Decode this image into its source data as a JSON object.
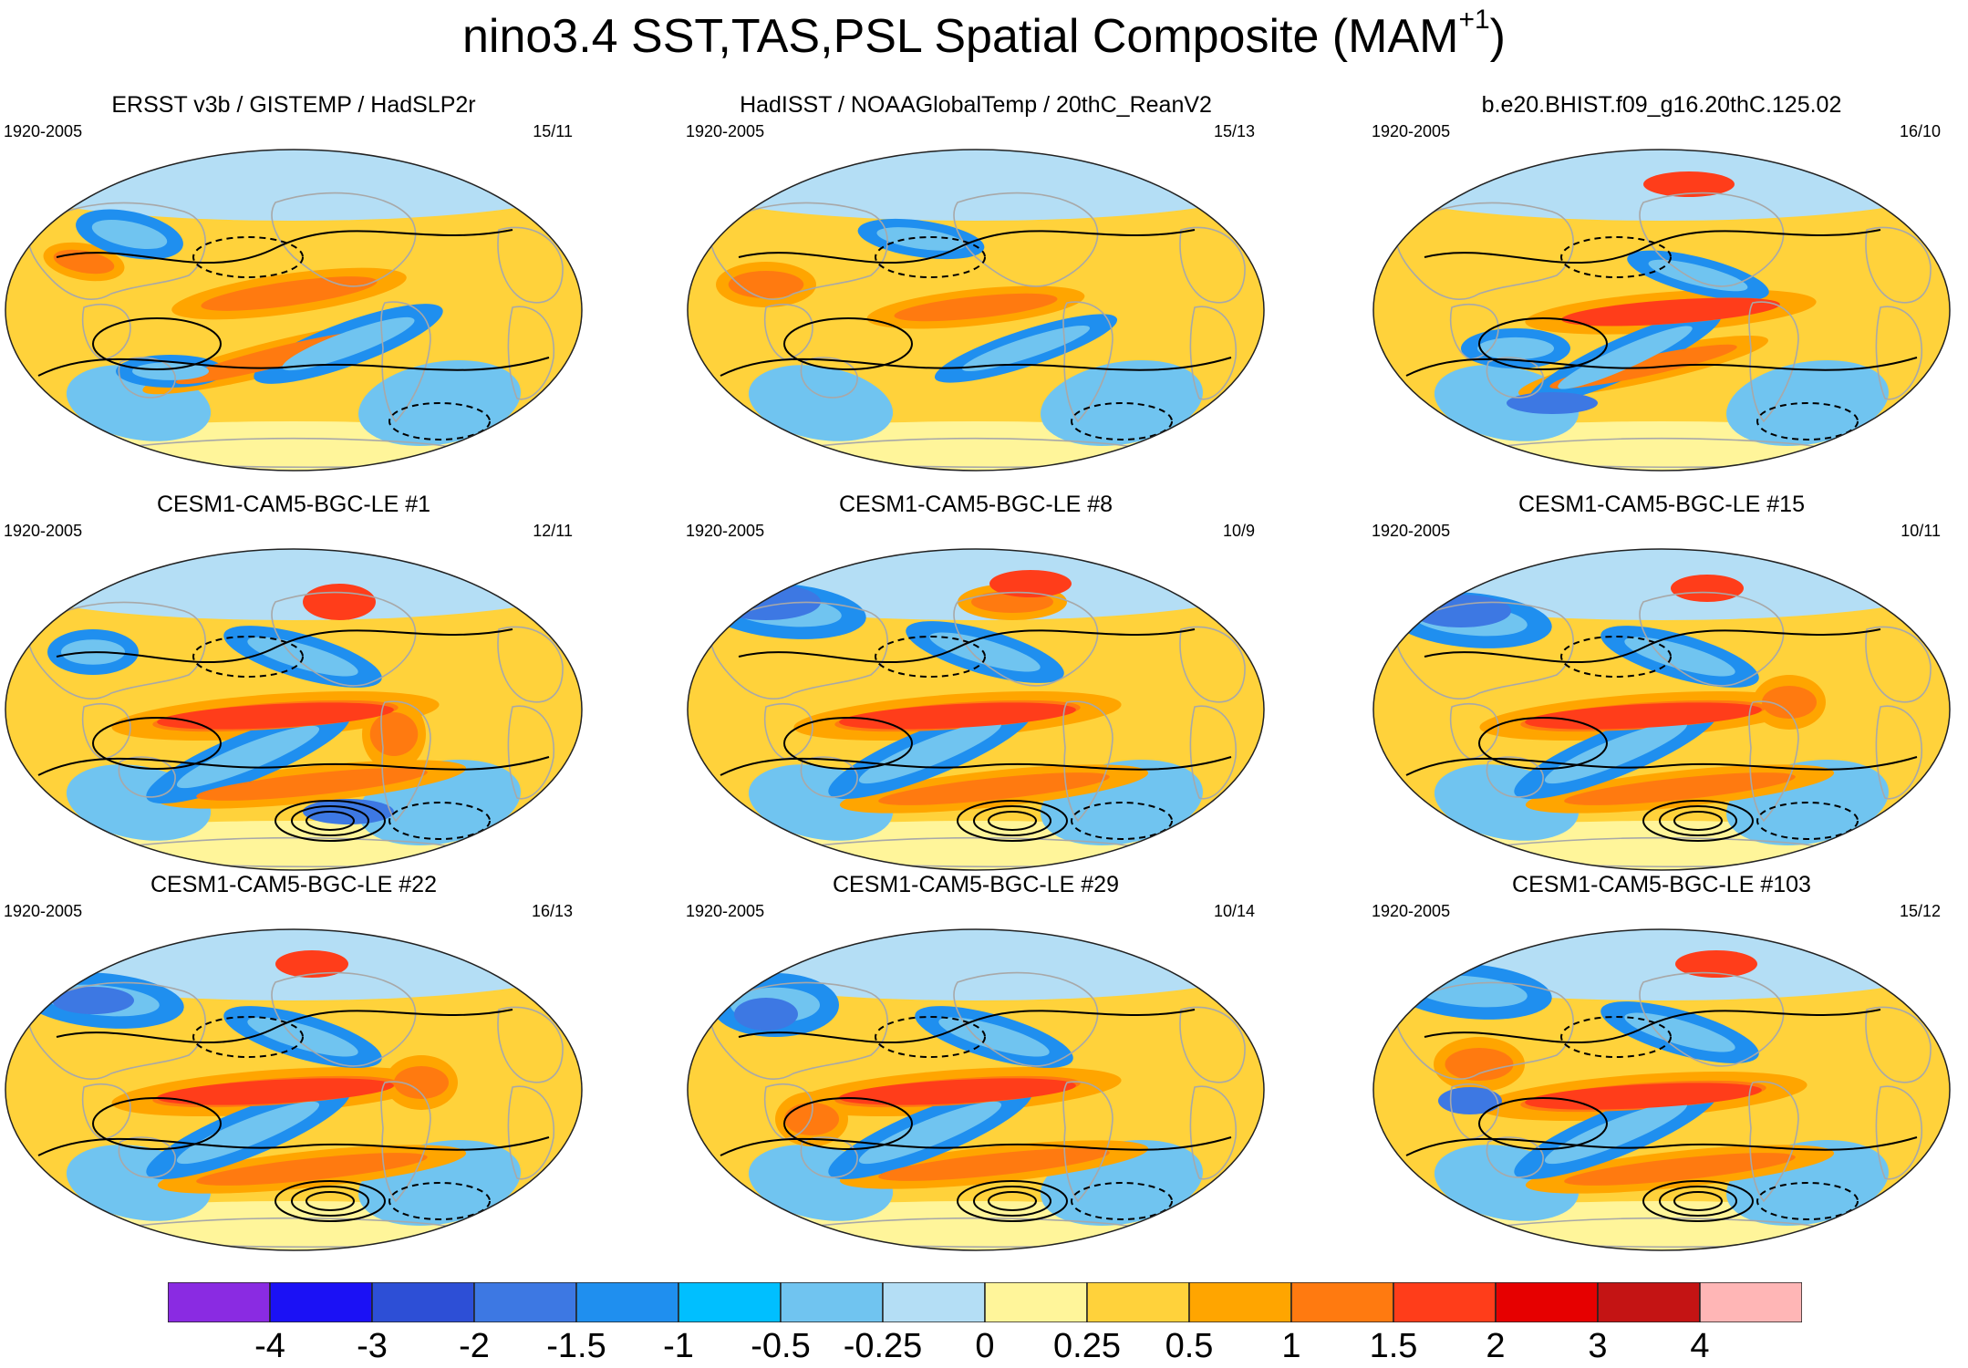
{
  "figure": {
    "title": "nino3.4 SST,TAS,PSL Spatial Composite (MAM",
    "title_superscript": "+1",
    "title_suffix": ")"
  },
  "panels": [
    {
      "title": "ERSST v3b / GISTEMP / HadSLP2r",
      "years": "1920-2005",
      "count": "15/11",
      "icon": "world-map-icon"
    },
    {
      "title": "HadISST / NOAAGlobalTemp / 20thC_ReanV2",
      "years": "1920-2005",
      "count": "15/13",
      "icon": "world-map-icon"
    },
    {
      "title": "b.e20.BHIST.f09_g16.20thC.125.02",
      "years": "1920-2005",
      "count": "16/10",
      "icon": "world-map-icon"
    },
    {
      "title": "CESM1-CAM5-BGC-LE #1",
      "years": "1920-2005",
      "count": "12/11",
      "icon": "world-map-icon"
    },
    {
      "title": "CESM1-CAM5-BGC-LE #8",
      "years": "1920-2005",
      "count": "10/9",
      "icon": "world-map-icon"
    },
    {
      "title": "CESM1-CAM5-BGC-LE #15",
      "years": "1920-2005",
      "count": "10/11",
      "icon": "world-map-icon"
    },
    {
      "title": "CESM1-CAM5-BGC-LE #22",
      "years": "1920-2005",
      "count": "16/13",
      "icon": "world-map-icon"
    },
    {
      "title": "CESM1-CAM5-BGC-LE #29",
      "years": "1920-2005",
      "count": "10/14",
      "icon": "world-map-icon"
    },
    {
      "title": "CESM1-CAM5-BGC-LE #103",
      "years": "1920-2005",
      "count": "15/12",
      "icon": "world-map-icon"
    }
  ],
  "colorbar": {
    "labels": [
      "-4",
      "-3",
      "-2",
      "-1.5",
      "-1",
      "-0.5",
      "-0.25",
      "0",
      "0.25",
      "0.5",
      "1",
      "1.5",
      "2",
      "3",
      "4"
    ],
    "colors": [
      "#8a2be2",
      "#1b11f5",
      "#2d4fd6",
      "#3d78e3",
      "#1f8fef",
      "#00bfff",
      "#70c4f0",
      "#b4def5",
      "#fff59a",
      "#ffd23b",
      "#ffa500",
      "#ff7a10",
      "#ff3d1a",
      "#e60000",
      "#c41414",
      "#ffb6b6"
    ]
  },
  "map_colors": {
    "ocean_base": "#ffd23b",
    "land_outline": "#a8a8a8",
    "contour": "#000000",
    "warm_1": "#ffa500",
    "warm_2": "#ff7a10",
    "warm_3": "#ff3d1a",
    "cool_1": "#70c4f0",
    "cool_2": "#1f8fef",
    "cool_3": "#3d78e3",
    "neutral": "#fff59a",
    "pale": "#b4def5"
  }
}
